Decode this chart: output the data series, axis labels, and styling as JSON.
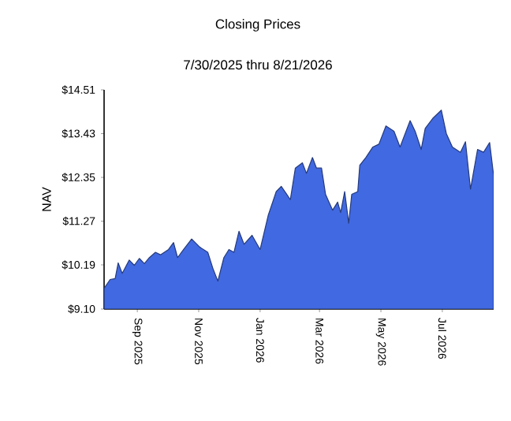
{
  "chart_data": {
    "type": "area",
    "title": "Closing Prices",
    "subtitle": "7/30/2025 thru 8/21/2026",
    "ylabel": "NAV",
    "x": [
      "2025-07-30",
      "2025-08-05",
      "2025-08-10",
      "2025-08-13",
      "2025-08-17",
      "2025-08-24",
      "2025-08-29",
      "2025-09-03",
      "2025-09-08",
      "2025-09-13",
      "2025-09-19",
      "2025-09-24",
      "2025-10-02",
      "2025-10-07",
      "2025-10-11",
      "2025-10-17",
      "2025-10-25",
      "2025-11-02",
      "2025-11-10",
      "2025-11-15",
      "2025-11-20",
      "2025-11-26",
      "2025-12-01",
      "2025-12-06",
      "2025-12-11",
      "2025-12-16",
      "2025-12-24",
      "2026-01-01",
      "2026-01-09",
      "2026-01-17",
      "2026-01-22",
      "2026-01-27",
      "2026-01-31",
      "2026-02-05",
      "2026-02-12",
      "2026-02-16",
      "2026-02-22",
      "2026-02-26",
      "2026-03-03",
      "2026-03-07",
      "2026-03-14",
      "2026-03-19",
      "2026-03-22",
      "2026-03-26",
      "2026-03-30",
      "2026-04-02",
      "2026-04-08",
      "2026-04-10",
      "2026-04-16",
      "2026-04-23",
      "2026-04-29",
      "2026-05-06",
      "2026-05-14",
      "2026-05-20",
      "2026-05-30",
      "2026-06-04",
      "2026-06-10",
      "2026-06-14",
      "2026-06-22",
      "2026-06-30",
      "2026-07-05",
      "2026-07-11",
      "2026-07-19",
      "2026-07-24",
      "2026-07-29",
      "2026-08-05",
      "2026-08-11",
      "2026-08-17",
      "2026-08-21"
    ],
    "series": [
      {
        "color": "#4169e1",
        "values": [
          9.61,
          9.83,
          9.85,
          10.24,
          9.98,
          10.31,
          10.18,
          10.35,
          10.22,
          10.37,
          10.5,
          10.44,
          10.57,
          10.74,
          10.37,
          10.57,
          10.83,
          10.63,
          10.5,
          10.11,
          9.79,
          10.37,
          10.57,
          10.5,
          11.02,
          10.7,
          10.92,
          10.57,
          11.41,
          12.0,
          12.13,
          11.95,
          11.8,
          12.58,
          12.71,
          12.45,
          12.84,
          12.58,
          12.58,
          11.93,
          11.54,
          11.74,
          11.48,
          12.0,
          11.22,
          11.93,
          12.0,
          12.65,
          12.84,
          13.1,
          13.17,
          13.62,
          13.49,
          13.1,
          13.75,
          13.49,
          13.04,
          13.56,
          13.82,
          14.01,
          13.43,
          13.1,
          12.97,
          13.23,
          12.06,
          13.04,
          12.97,
          13.21,
          12.39
        ]
      }
    ],
    "xlim": [
      "2025-07-30",
      "2026-08-21"
    ],
    "xticks": [
      {
        "value": "2025-09-01",
        "label": "Sep 2025"
      },
      {
        "value": "2025-11-01",
        "label": "Nov 2025"
      },
      {
        "value": "2026-01-01",
        "label": "Jan 2026"
      },
      {
        "value": "2026-03-01",
        "label": "Mar 2026"
      },
      {
        "value": "2026-05-01",
        "label": "May 2026"
      },
      {
        "value": "2026-07-01",
        "label": "Jul 2026"
      }
    ],
    "ylim": [
      9.1,
      14.51
    ],
    "yticks": [
      {
        "value": 9.1,
        "label": "$9.10"
      },
      {
        "value": 10.19,
        "label": "$10.19"
      },
      {
        "value": 11.27,
        "label": "$11.27"
      },
      {
        "value": 12.35,
        "label": "$12.35"
      },
      {
        "value": 13.43,
        "label": "$13.43"
      },
      {
        "value": 14.51,
        "label": "$14.51"
      }
    ],
    "grid": false
  }
}
